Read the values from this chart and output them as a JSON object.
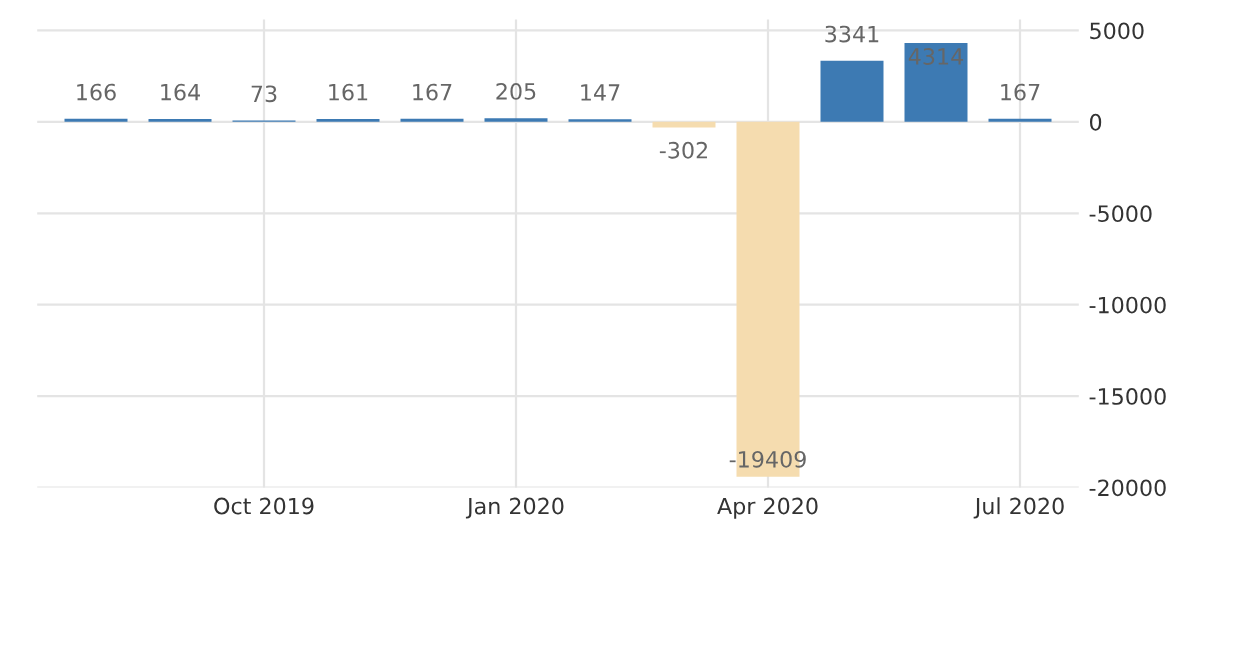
{
  "chart_data": {
    "type": "bar",
    "categories": [
      null,
      null,
      "Oct 2019",
      null,
      null,
      "Jan 2020",
      null,
      null,
      "Apr 2020",
      null,
      null,
      "Jul 2020"
    ],
    "values": [
      166,
      164,
      73,
      161,
      167,
      205,
      147,
      -302,
      -19409,
      3341,
      4314,
      167
    ],
    "colors": [
      "#3d7ab3",
      "#3d7ab3",
      "#3d7ab3",
      "#3d7ab3",
      "#3d7ab3",
      "#3d7ab3",
      "#3d7ab3",
      "#f5dcaf",
      "#f5dcaf",
      "#3d7ab3",
      "#3d7ab3",
      "#3d7ab3"
    ],
    "ylim": [
      -20000,
      5600
    ],
    "yticks": [
      -20000,
      -15000,
      -10000,
      -5000,
      0,
      5000
    ],
    "grid": true,
    "data_labels": true
  }
}
